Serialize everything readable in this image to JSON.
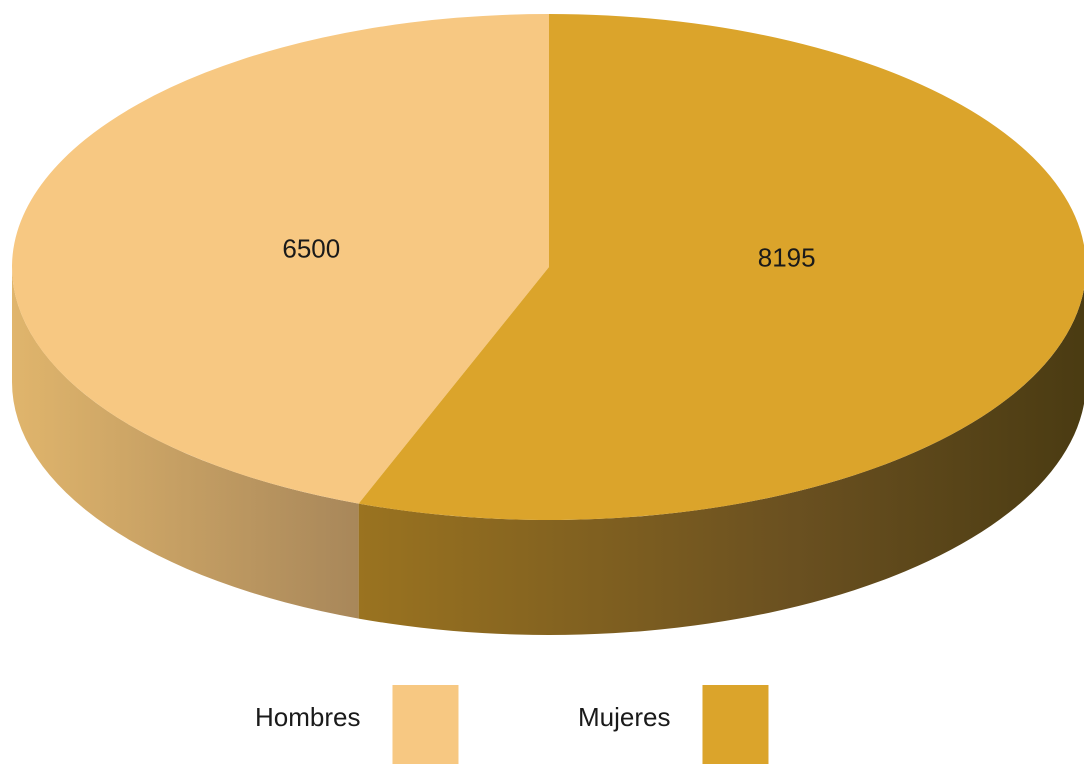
{
  "chart_data": {
    "type": "pie",
    "categories": [
      "Hombres",
      "Mujeres"
    ],
    "values": [
      6500,
      8195
    ],
    "colors": [
      "#f7c882",
      "#dba42b"
    ],
    "legend": "bottom"
  }
}
